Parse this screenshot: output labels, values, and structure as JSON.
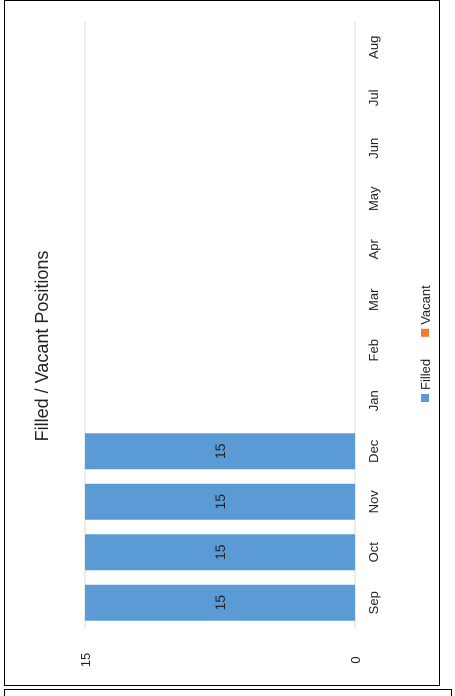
{
  "chart_data": {
    "type": "bar",
    "orientation": "rotated-90",
    "title": "Filled / Vacant Positions",
    "categories": [
      "Sep",
      "Oct",
      "Nov",
      "Dec",
      "Jan",
      "Feb",
      "Mar",
      "Apr",
      "May",
      "Jun",
      "Jul",
      "Aug"
    ],
    "series": [
      {
        "name": "Filled",
        "values": [
          15,
          15,
          15,
          15,
          null,
          null,
          null,
          null,
          null,
          null,
          null,
          null
        ],
        "color": "#5b9bd5"
      },
      {
        "name": "Vacant",
        "values": [
          null,
          null,
          null,
          null,
          null,
          null,
          null,
          null,
          null,
          null,
          null,
          null
        ],
        "color": "#ed7d31"
      }
    ],
    "data_labels": [
      "15",
      "15",
      "15",
      "15"
    ],
    "y_ticks": [
      "0",
      "15"
    ],
    "ylim": [
      0,
      15
    ],
    "stacked": true,
    "grid": true,
    "legend": "bottom"
  }
}
